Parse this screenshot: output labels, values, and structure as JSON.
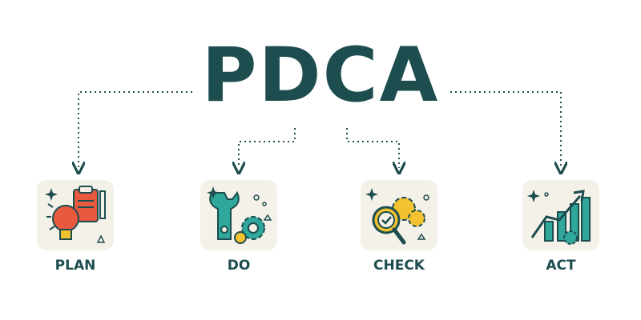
{
  "title": "PDCA",
  "steps": [
    {
      "label": "PLAN"
    },
    {
      "label": "DO"
    },
    {
      "label": "CHECK"
    },
    {
      "label": "ACT"
    }
  ],
  "icons": [
    "lightbulb-clipboard-icon",
    "wrench-gear-icon",
    "magnifier-gear-icon",
    "growth-chart-gear-icon"
  ],
  "colors": {
    "title": "#1d4d4f",
    "connector": "#1d4d4f",
    "card_background": "#f4f1e8",
    "red": "#e85a3f",
    "teal": "#2fa89b",
    "yellow": "#f2c230"
  }
}
